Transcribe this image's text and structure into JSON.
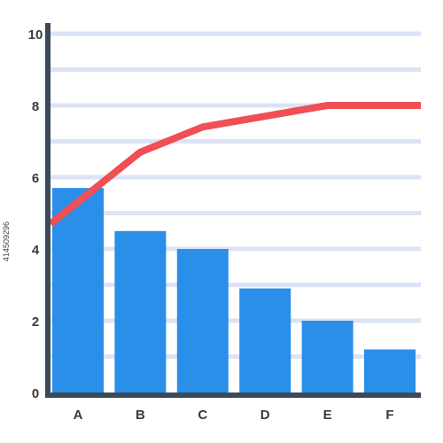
{
  "chart_data": {
    "type": "bar",
    "title": "",
    "xlabel": "",
    "ylabel": "",
    "categories": [
      "A",
      "B",
      "C",
      "D",
      "E",
      "F"
    ],
    "values": [
      5.7,
      4.5,
      4.0,
      2.9,
      2.0,
      1.2
    ],
    "line": {
      "values": [
        4.7,
        6.7,
        7.4,
        7.7,
        8.0,
        8.0
      ]
    },
    "ylim": [
      0,
      10
    ],
    "yticks": [
      0,
      2,
      4,
      6,
      8,
      10
    ],
    "grid": true,
    "colors": {
      "bar": "#2a8fe8",
      "line": "#ef4f55",
      "grid": "#dde3f6",
      "axis": "#3b4a58"
    }
  },
  "watermark_id": "414509296"
}
